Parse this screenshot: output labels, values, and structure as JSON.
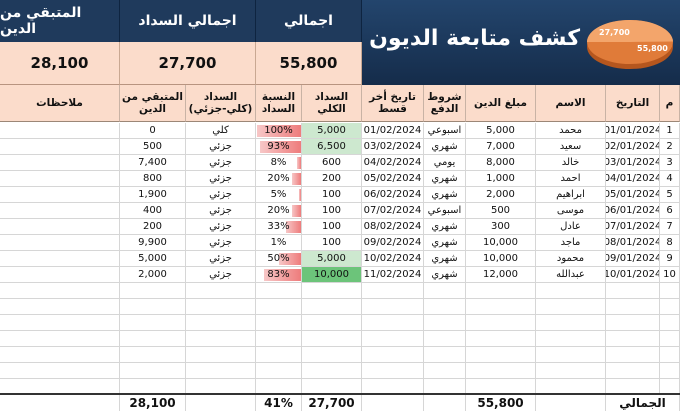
{
  "summary": {
    "remaining_label": "المتبقي من الدين",
    "remaining_value": "28,100",
    "paid_label": "اجمالي السداد",
    "paid_value": "27,700",
    "total_label": "اجمالي",
    "total_value": "55,800"
  },
  "title": "كشف متابعة الديون",
  "pie": {
    "paid_label": "27,700",
    "total_label": "55,800",
    "paid_fraction": 0.496,
    "color_main": "#e07b39",
    "color_slice": "#f3a56b"
  },
  "headers": {
    "num": "م",
    "date": "التاريخ",
    "name": "الاسم",
    "amount": "مبلغ الدين",
    "terms": "شروط الدفع",
    "last_date": "تاريخ أخر قسط",
    "total_paid": "السداد الكلي",
    "pct": "النسبة السداد",
    "type": "السداد (كلي-جزئي)",
    "remaining": "المتبقي من الدين",
    "notes": "ملاحظات"
  },
  "rows": [
    {
      "num": "1",
      "date": "01/01/2024",
      "name": "محمد",
      "amount": "5,000",
      "terms": "اسبوعي",
      "last_date": "01/02/2024",
      "total_paid": "5,000",
      "pct": "100%",
      "pct_value": 100,
      "type": "كلي",
      "remaining": "0",
      "paid_style": "paid"
    },
    {
      "num": "2",
      "date": "02/01/2024",
      "name": "سعيد",
      "amount": "7,000",
      "terms": "شهري",
      "last_date": "03/02/2024",
      "total_paid": "6,500",
      "pct": "93%",
      "pct_value": 93,
      "type": "جزئي",
      "remaining": "500",
      "paid_style": "paid"
    },
    {
      "num": "3",
      "date": "03/01/2024",
      "name": "خالد",
      "amount": "8,000",
      "terms": "يومي",
      "last_date": "04/02/2024",
      "total_paid": "600",
      "pct": "8%",
      "pct_value": 8,
      "type": "جزئي",
      "remaining": "7,400",
      "paid_style": ""
    },
    {
      "num": "4",
      "date": "04/01/2024",
      "name": "احمد",
      "amount": "1,000",
      "terms": "شهري",
      "last_date": "05/02/2024",
      "total_paid": "200",
      "pct": "20%",
      "pct_value": 20,
      "type": "جزئي",
      "remaining": "800",
      "paid_style": ""
    },
    {
      "num": "5",
      "date": "05/01/2024",
      "name": "ابراهيم",
      "amount": "2,000",
      "terms": "شهري",
      "last_date": "06/02/2024",
      "total_paid": "100",
      "pct": "5%",
      "pct_value": 5,
      "type": "جزئي",
      "remaining": "1,900",
      "paid_style": ""
    },
    {
      "num": "6",
      "date": "06/01/2024",
      "name": "موسى",
      "amount": "500",
      "terms": "اسبوعي",
      "last_date": "07/02/2024",
      "total_paid": "100",
      "pct": "20%",
      "pct_value": 20,
      "type": "جزئي",
      "remaining": "400",
      "paid_style": ""
    },
    {
      "num": "7",
      "date": "07/01/2024",
      "name": "عادل",
      "amount": "300",
      "terms": "شهري",
      "last_date": "08/02/2024",
      "total_paid": "100",
      "pct": "33%",
      "pct_value": 33,
      "type": "جزئي",
      "remaining": "200",
      "paid_style": ""
    },
    {
      "num": "8",
      "date": "08/01/2024",
      "name": "ماجد",
      "amount": "10,000",
      "terms": "شهري",
      "last_date": "09/02/2024",
      "total_paid": "100",
      "pct": "1%",
      "pct_value": 1,
      "type": "جزئي",
      "remaining": "9,900",
      "paid_style": ""
    },
    {
      "num": "9",
      "date": "09/01/2024",
      "name": "محمود",
      "amount": "10,000",
      "terms": "شهري",
      "last_date": "10/02/2024",
      "total_paid": "5,000",
      "pct": "50%",
      "pct_value": 50,
      "type": "جزئي",
      "remaining": "5,000",
      "paid_style": "paid"
    },
    {
      "num": "10",
      "date": "10/01/2024",
      "name": "عبدالله",
      "amount": "12,000",
      "terms": "شهري",
      "last_date": "11/02/2024",
      "total_paid": "10,000",
      "pct": "83%",
      "pct_value": 83,
      "type": "جزئي",
      "remaining": "2,000",
      "paid_style": "paid-strong"
    }
  ],
  "totals": {
    "label": "الجمالي",
    "amount": "55,800",
    "total_paid": "27,700",
    "pct": "41%",
    "remaining": "28,100"
  }
}
